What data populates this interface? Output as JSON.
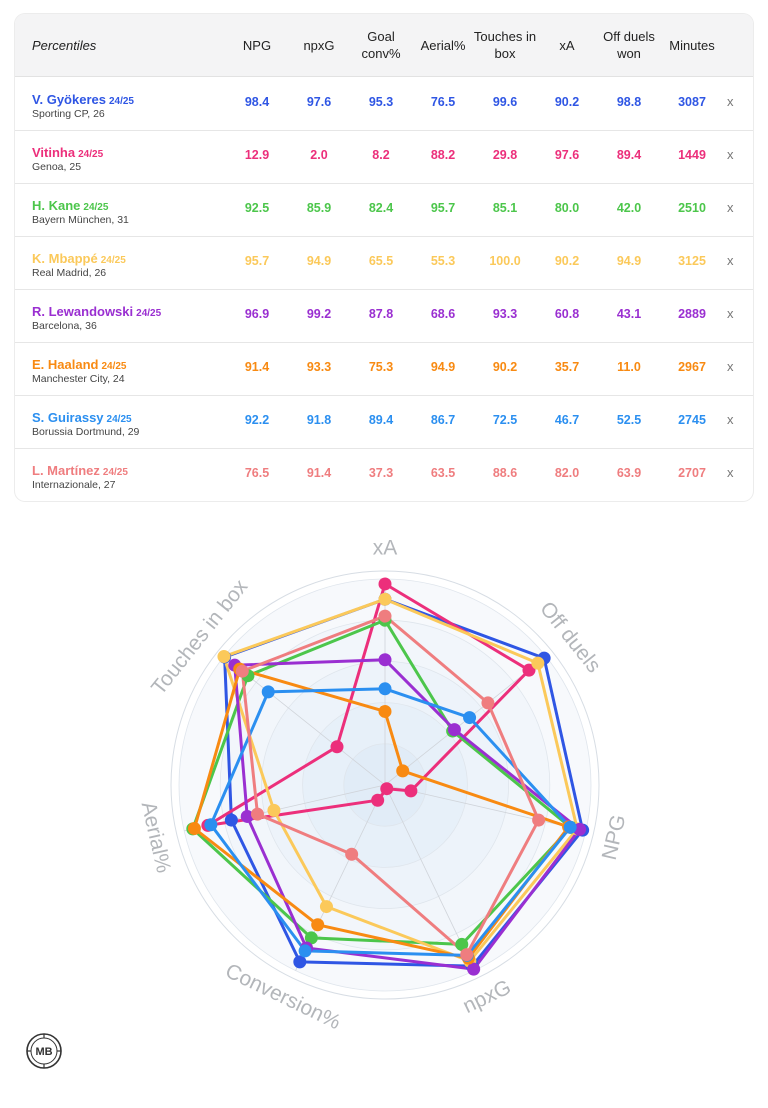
{
  "table": {
    "header_label": "Percentiles",
    "columns": [
      "NPG",
      "npxG",
      "Goal conv%",
      "Aerial%",
      "Touches in box",
      "xA",
      "Off duels won",
      "Minutes"
    ],
    "remove_symbol": "x",
    "rows": [
      {
        "name": "V. Gyökeres",
        "season": "24/25",
        "club": "Sporting CP, 26",
        "color": "#2f56e4",
        "values": [
          "98.4",
          "97.6",
          "95.3",
          "76.5",
          "99.6",
          "90.2",
          "98.8",
          "3087"
        ]
      },
      {
        "name": "Vitinha",
        "season": "24/25",
        "club": "Genoa, 25",
        "color": "#ec2f7b",
        "values": [
          "12.9",
          "2.0",
          "8.2",
          "88.2",
          "29.8",
          "97.6",
          "89.4",
          "1449"
        ]
      },
      {
        "name": "H. Kane",
        "season": "24/25",
        "club": "Bayern München, 31",
        "color": "#4cc64b",
        "values": [
          "92.5",
          "85.9",
          "82.4",
          "95.7",
          "85.1",
          "80.0",
          "42.0",
          "2510"
        ]
      },
      {
        "name": "K. Mbappé",
        "season": "24/25",
        "club": "Real Madrid, 26",
        "color": "#fbc95a",
        "values": [
          "95.7",
          "94.9",
          "65.5",
          "55.3",
          "100.0",
          "90.2",
          "94.9",
          "3125"
        ]
      },
      {
        "name": "R. Lewandowski",
        "season": "24/25",
        "club": "Barcelona, 36",
        "color": "#9a2fd1",
        "values": [
          "96.9",
          "99.2",
          "87.8",
          "68.6",
          "93.3",
          "60.8",
          "43.1",
          "2889"
        ]
      },
      {
        "name": "E. Haaland",
        "season": "24/25",
        "club": "Manchester City, 24",
        "color": "#f88a12",
        "values": [
          "91.4",
          "93.3",
          "75.3",
          "94.9",
          "90.2",
          "35.7",
          "11.0",
          "2967"
        ]
      },
      {
        "name": "S. Guirassy",
        "season": "24/25",
        "club": "Borussia Dortmund, 29",
        "color": "#2b8ff0",
        "values": [
          "92.2",
          "91.8",
          "89.4",
          "86.7",
          "72.5",
          "46.7",
          "52.5",
          "2745"
        ]
      },
      {
        "name": "L. Martínez",
        "season": "24/25",
        "club": "Internazionale, 27",
        "color": "#ef7d7f",
        "values": [
          "76.5",
          "91.4",
          "37.3",
          "63.5",
          "88.6",
          "82.0",
          "63.9",
          "2707"
        ]
      }
    ]
  },
  "chart_data": {
    "type": "radar",
    "axes": [
      "xA",
      "Off duels",
      "NPG",
      "npxG",
      "Conversion%",
      "Aerial%",
      "Touches in box"
    ],
    "range": [
      0,
      100
    ],
    "grid": true,
    "series": [
      {
        "name": "V. Gyökeres",
        "color": "#2f56e4",
        "values": [
          90.2,
          98.8,
          98.4,
          97.6,
          95.3,
          76.5,
          99.6
        ]
      },
      {
        "name": "Vitinha",
        "color": "#ec2f7b",
        "values": [
          97.6,
          89.4,
          12.9,
          2.0,
          8.2,
          88.2,
          29.8
        ]
      },
      {
        "name": "H. Kane",
        "color": "#4cc64b",
        "values": [
          80.0,
          42.0,
          92.5,
          85.9,
          82.4,
          95.7,
          85.1
        ]
      },
      {
        "name": "K. Mbappé",
        "color": "#fbc95a",
        "values": [
          90.2,
          94.9,
          95.7,
          94.9,
          65.5,
          55.3,
          100.0
        ]
      },
      {
        "name": "R. Lewandowski",
        "color": "#9a2fd1",
        "values": [
          60.8,
          43.1,
          96.9,
          99.2,
          87.8,
          68.6,
          93.3
        ]
      },
      {
        "name": "E. Haaland",
        "color": "#f88a12",
        "values": [
          35.7,
          11.0,
          91.4,
          93.3,
          75.3,
          94.9,
          90.2
        ]
      },
      {
        "name": "S. Guirassy",
        "color": "#2b8ff0",
        "values": [
          46.7,
          52.5,
          92.2,
          91.8,
          89.4,
          86.7,
          72.5
        ]
      },
      {
        "name": "L. Martínez",
        "color": "#ef7d7f",
        "values": [
          82.0,
          63.9,
          76.5,
          91.4,
          37.3,
          63.5,
          88.6
        ]
      }
    ]
  },
  "logo": {
    "text": "MB"
  }
}
